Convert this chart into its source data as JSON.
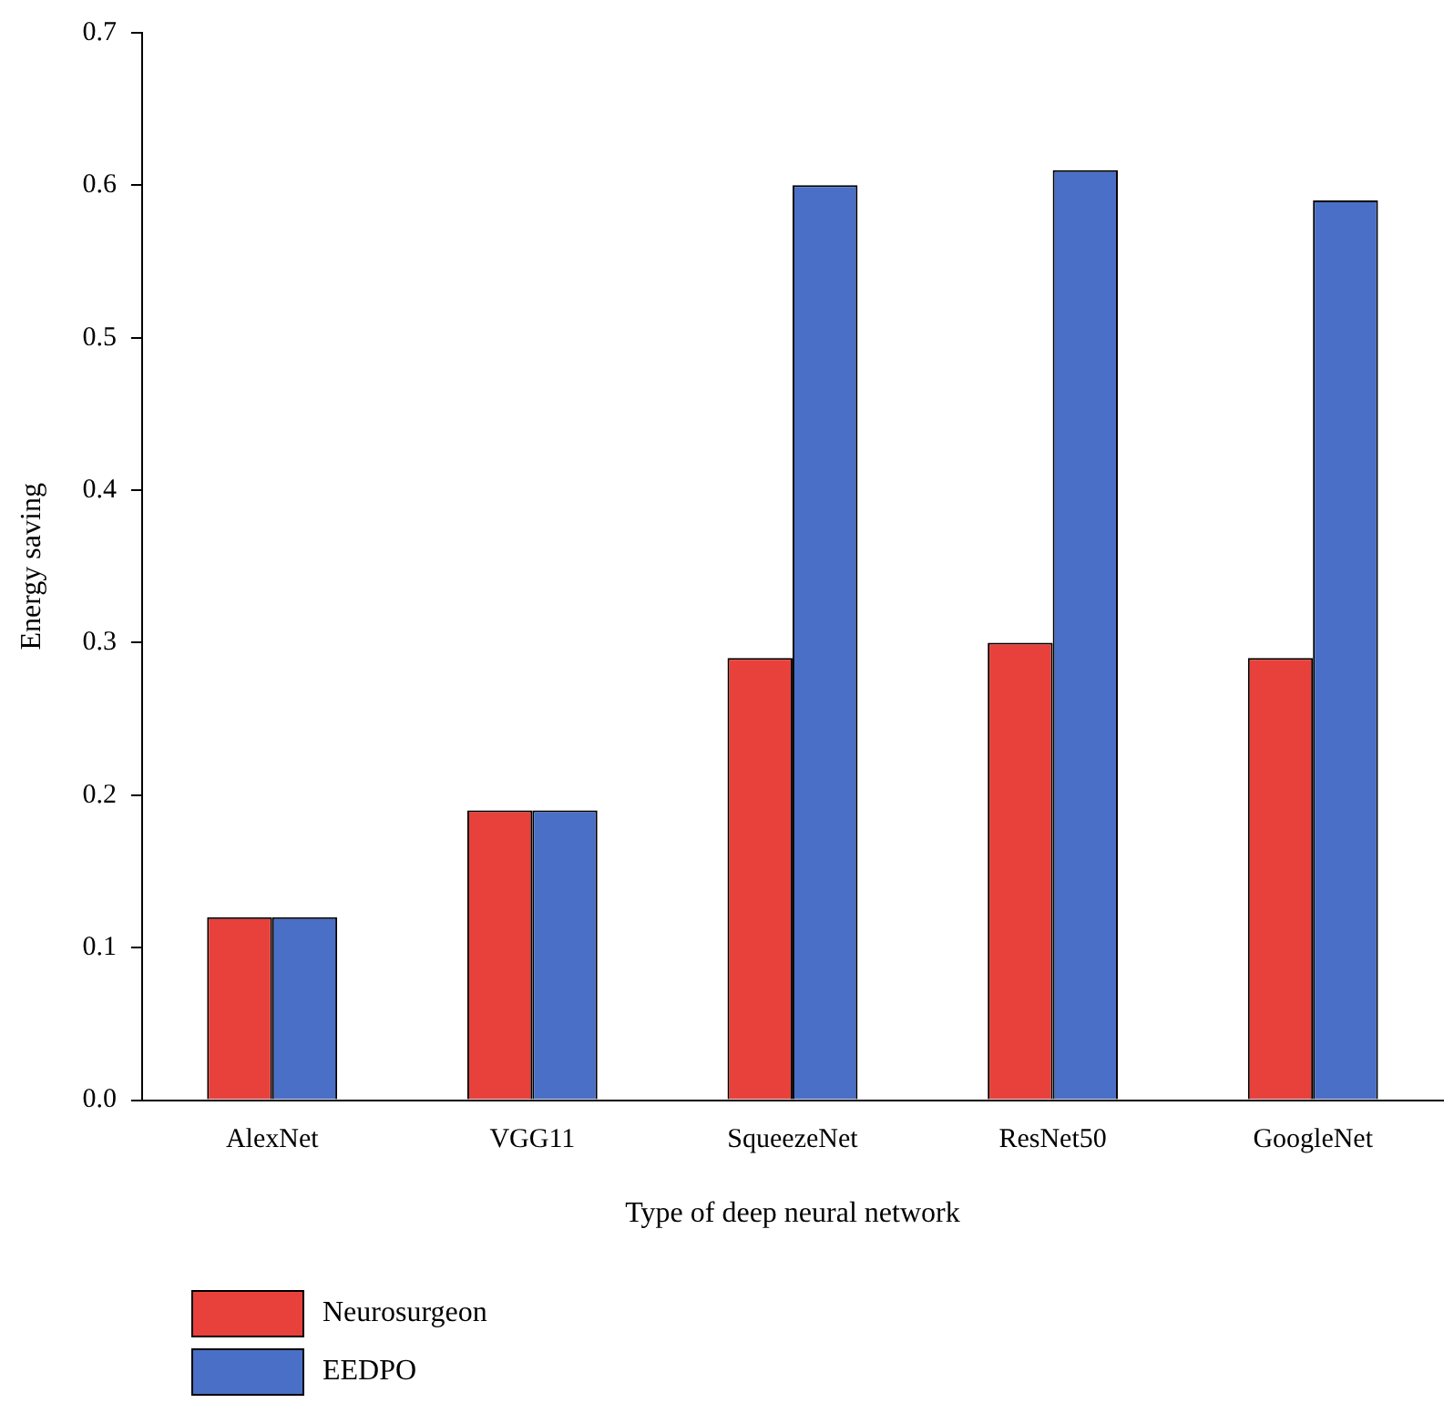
{
  "chart_data": {
    "type": "bar",
    "xlabel": "Type of deep neural network",
    "ylabel": "Energy saving",
    "categories": [
      "AlexNet",
      "VGG11",
      "SqueezeNet",
      "ResNet50",
      "GoogleNet"
    ],
    "series": [
      {
        "name": "Neurosurgeon",
        "color": "#e8413c",
        "values": [
          0.12,
          0.19,
          0.29,
          0.3,
          0.29
        ]
      },
      {
        "name": "EEDPO",
        "color": "#4a6fc6",
        "values": [
          0.12,
          0.19,
          0.6,
          0.61,
          0.59
        ]
      }
    ],
    "ylim": [
      0,
      0.7
    ],
    "yticks": [
      {
        "value": 0,
        "label": "0.0"
      },
      0.1,
      0.2,
      0.3,
      0.4,
      0.5,
      0.6,
      0.7
    ],
    "grid": false,
    "legend": "bottom left"
  }
}
